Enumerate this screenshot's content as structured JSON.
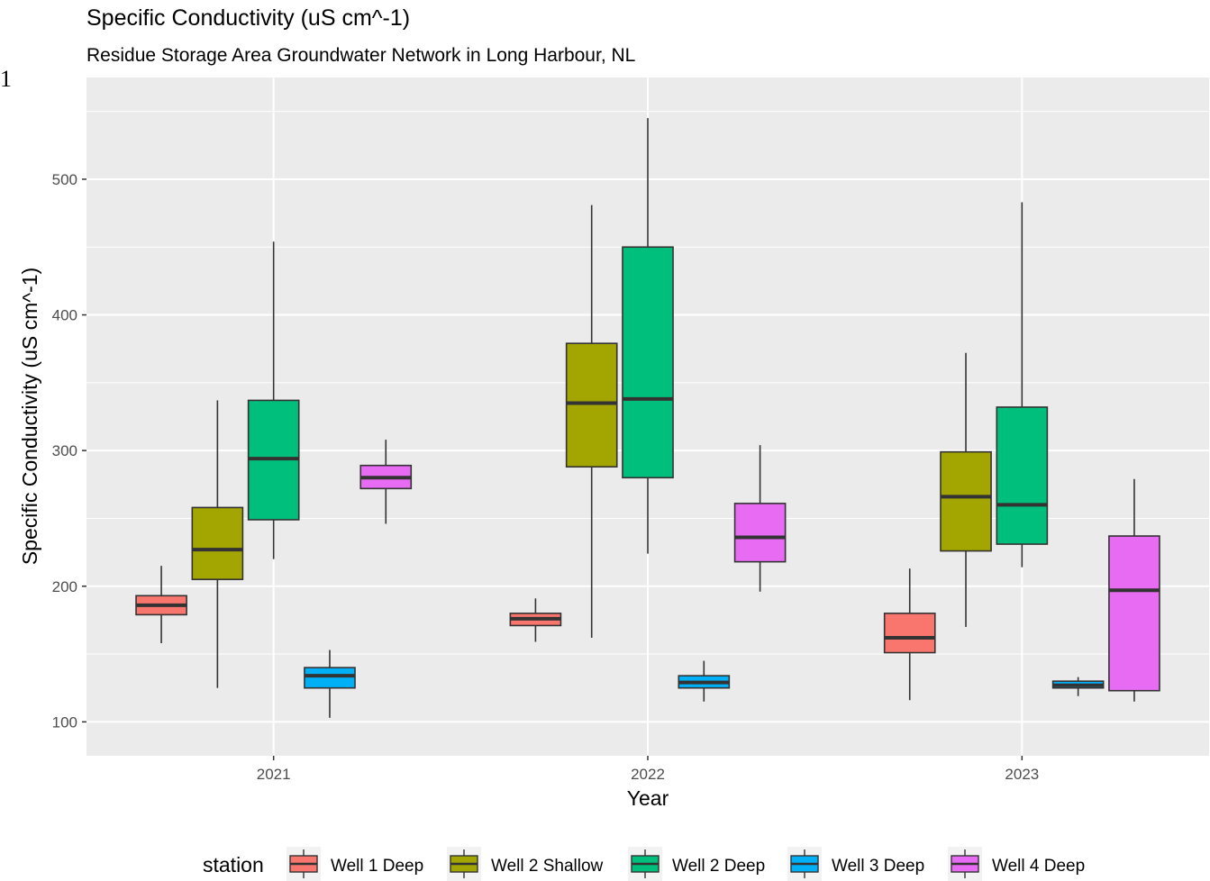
{
  "chart_data": {
    "type": "boxplot",
    "title": "Specific Conductivity (uS cm^-1)",
    "subtitle": "Residue Storage Area Groundwater Network in Long Harbour, NL",
    "xlabel": "Year",
    "ylabel": "Specific Conductivity (uS cm^-1)",
    "categories": [
      "2021",
      "2022",
      "2023"
    ],
    "yticks": [
      100,
      200,
      300,
      400,
      500
    ],
    "ylim": [
      75,
      575
    ],
    "grid": true,
    "legend": {
      "title": "station",
      "position": "bottom"
    },
    "stray_mark": "1",
    "series": [
      {
        "name": "Well 1 Deep",
        "color": "#F8766D",
        "boxes": [
          {
            "min": 158,
            "q1": 179,
            "median": 186,
            "q3": 193,
            "max": 215
          },
          {
            "min": 159,
            "q1": 171,
            "median": 176,
            "q3": 180,
            "max": 191
          },
          {
            "min": 116,
            "q1": 151,
            "median": 162,
            "q3": 180,
            "max": 213
          }
        ]
      },
      {
        "name": "Well 2 Shallow",
        "color": "#A3A500",
        "boxes": [
          {
            "min": 125,
            "q1": 205,
            "median": 227,
            "q3": 258,
            "max": 337
          },
          {
            "min": 162,
            "q1": 288,
            "median": 335,
            "q3": 379,
            "max": 481
          },
          {
            "min": 170,
            "q1": 226,
            "median": 266,
            "q3": 299,
            "max": 372
          }
        ]
      },
      {
        "name": "Well 2 Deep",
        "color": "#00BF7D",
        "boxes": [
          {
            "min": 220,
            "q1": 249,
            "median": 294,
            "q3": 337,
            "max": 454
          },
          {
            "min": 224,
            "q1": 280,
            "median": 338,
            "q3": 450,
            "max": 545
          },
          {
            "min": 214,
            "q1": 231,
            "median": 260,
            "q3": 332,
            "max": 483
          }
        ]
      },
      {
        "name": "Well 3 Deep",
        "color": "#00B0F6",
        "boxes": [
          {
            "min": 103,
            "q1": 125,
            "median": 134,
            "q3": 140,
            "max": 153
          },
          {
            "min": 115,
            "q1": 125,
            "median": 129,
            "q3": 134,
            "max": 145
          },
          {
            "min": 119,
            "q1": 125,
            "median": 127,
            "q3": 130,
            "max": 133
          }
        ]
      },
      {
        "name": "Well 4 Deep",
        "color": "#E76BF3",
        "boxes": [
          {
            "min": 246,
            "q1": 272,
            "median": 280,
            "q3": 289,
            "max": 308
          },
          {
            "min": 196,
            "q1": 218,
            "median": 236,
            "q3": 261,
            "max": 304
          },
          {
            "min": 115,
            "q1": 123,
            "median": 197,
            "q3": 237,
            "max": 279
          }
        ]
      }
    ]
  }
}
